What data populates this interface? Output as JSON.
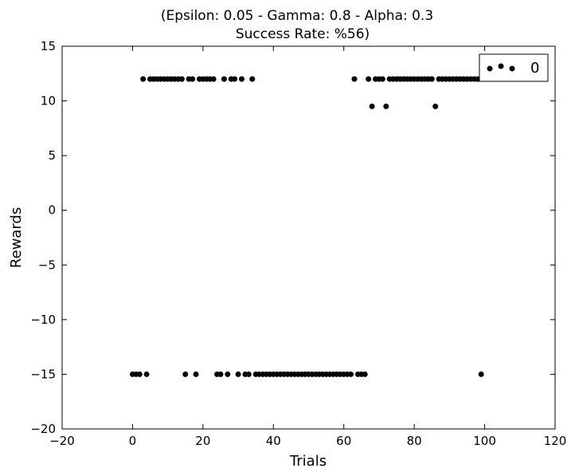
{
  "chart_data": {
    "type": "scatter",
    "title_line1": "(Epsilon: 0.05 - Gamma: 0.8 - Alpha: 0.3",
    "title_line2": "Success Rate: %56)",
    "xlabel": "Trials",
    "ylabel": "Rewards",
    "xlim": [
      -20,
      120
    ],
    "ylim": [
      -20,
      15
    ],
    "xticks": [
      -20,
      0,
      20,
      40,
      60,
      80,
      100,
      120
    ],
    "yticks": [
      -20,
      -15,
      -10,
      -5,
      0,
      5,
      10,
      15
    ],
    "xtick_labels": [
      "−20",
      "0",
      "20",
      "40",
      "60",
      "80",
      "100",
      "120"
    ],
    "ytick_labels": [
      "−20",
      "−15",
      "−10",
      "−5",
      "0",
      "5",
      "10",
      "15"
    ],
    "grid": false,
    "legend": {
      "position": "top-right",
      "entries": [
        "0"
      ]
    },
    "point_color": "#000000",
    "series": [
      {
        "x": [
          0,
          1,
          2,
          3,
          4,
          5,
          6,
          7,
          8,
          9,
          10,
          11,
          12,
          13,
          14,
          15,
          16,
          17,
          18,
          19,
          20,
          21,
          22,
          23,
          24,
          25,
          26,
          27,
          28,
          29,
          30,
          31,
          32,
          33,
          34,
          35,
          36,
          37,
          38,
          39,
          40,
          41,
          42,
          43,
          44,
          45,
          46,
          47,
          48,
          49,
          50,
          51,
          52,
          53,
          54,
          55,
          56,
          57,
          58,
          59,
          60,
          61,
          62,
          63,
          64,
          65,
          66,
          67,
          68,
          69,
          70,
          71,
          72,
          73,
          74,
          75,
          76,
          77,
          78,
          79,
          80,
          81,
          82,
          83,
          84,
          85,
          86,
          87,
          88,
          89,
          90,
          91,
          92,
          93,
          94,
          95,
          96,
          97,
          98,
          99
        ],
        "y": [
          -15,
          -15,
          -15,
          12,
          -15,
          12,
          12,
          12,
          12,
          12,
          12,
          12,
          12,
          12,
          12,
          -15,
          12,
          12,
          -15,
          12,
          12,
          12,
          12,
          12,
          -15,
          -15,
          12,
          -15,
          12,
          12,
          -15,
          12,
          -15,
          -15,
          12,
          -15,
          -15,
          -15,
          -15,
          -15,
          -15,
          -15,
          -15,
          -15,
          -15,
          -15,
          -15,
          -15,
          -15,
          -15,
          -15,
          -15,
          -15,
          -15,
          -15,
          -15,
          -15,
          -15,
          -15,
          -15,
          -15,
          -15,
          -15,
          12,
          -15,
          -15,
          -15,
          12,
          9.5,
          12,
          12,
          12,
          9.5,
          12,
          12,
          12,
          12,
          12,
          12,
          12,
          12,
          12,
          12,
          12,
          12,
          12,
          9.5,
          12,
          12,
          12,
          12,
          12,
          12,
          12,
          12,
          12,
          12,
          12,
          12,
          -15
        ]
      }
    ]
  }
}
